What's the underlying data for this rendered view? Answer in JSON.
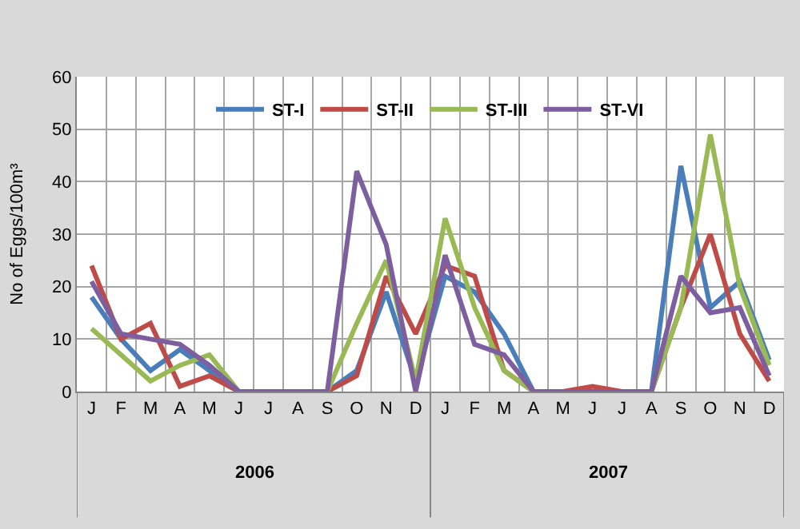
{
  "chart_data": {
    "type": "line",
    "ylabel": "No of Eggs/100m³",
    "categories": [
      "J",
      "F",
      "M",
      "A",
      "M",
      "J",
      "J",
      "A",
      "S",
      "O",
      "N",
      "D",
      "J",
      "F",
      "M",
      "A",
      "M",
      "J",
      "J",
      "A",
      "S",
      "O",
      "N",
      "D"
    ],
    "annotations": [
      "2006",
      "2007"
    ],
    "series": [
      {
        "name": "ST-I",
        "color": "#4a7ebb",
        "values": [
          18,
          10,
          4,
          8,
          4,
          0,
          0,
          0,
          0,
          4,
          19,
          2,
          22,
          19,
          11,
          0,
          0,
          0,
          0,
          0,
          43,
          16,
          21,
          6
        ]
      },
      {
        "name": "ST-II",
        "color": "#be4b48",
        "values": [
          24,
          10,
          13,
          1,
          3,
          0,
          0,
          0,
          0,
          3,
          22,
          11,
          24,
          22,
          4,
          0,
          0,
          1,
          0,
          0,
          16,
          30,
          11,
          2
        ]
      },
      {
        "name": "ST-III",
        "color": "#98b954",
        "values": [
          12,
          7,
          2,
          5,
          7,
          0,
          0,
          0,
          0,
          13,
          25,
          2,
          33,
          16,
          4,
          0,
          0,
          0,
          0,
          0,
          16,
          49,
          20,
          5
        ]
      },
      {
        "name": "ST-VI",
        "color": "#7d5fa0",
        "values": [
          21,
          11,
          10,
          9,
          5,
          0,
          0,
          0,
          0,
          42,
          28,
          0,
          26,
          9,
          7,
          0,
          0,
          0,
          0,
          0,
          22,
          15,
          16,
          3
        ]
      }
    ],
    "ylim": [
      0,
      60
    ],
    "yticks": [
      0,
      10,
      20,
      30,
      40,
      50,
      60
    ],
    "grid": true,
    "legend": "top",
    "marker": "none",
    "line_style": "solid"
  }
}
